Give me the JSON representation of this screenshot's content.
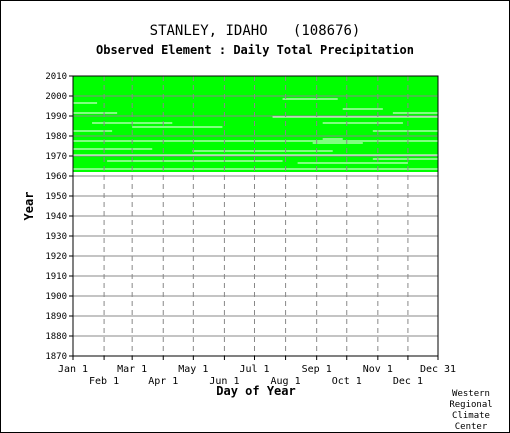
{
  "chart_data": {
    "type": "heatmap",
    "title": "STANLEY, IDAHO   (108676)",
    "subtitle": "Observed Element : Daily Total Precipitation",
    "xlabel": "Day of Year",
    "ylabel": "Year",
    "ylim": [
      1870,
      2010
    ],
    "xlim": [
      1,
      365
    ],
    "y_ticks": [
      1870,
      1880,
      1890,
      1900,
      1910,
      1920,
      1930,
      1940,
      1950,
      1960,
      1970,
      1980,
      1990,
      2000,
      2010
    ],
    "x_ticks_upper": [
      {
        "label": "Jan 1",
        "day": 1
      },
      {
        "label": "Mar 1",
        "day": 60
      },
      {
        "label": "May 1",
        "day": 121
      },
      {
        "label": "Jul 1",
        "day": 182
      },
      {
        "label": "Sep 1",
        "day": 244
      },
      {
        "label": "Nov 1",
        "day": 305
      },
      {
        "label": "Dec 31",
        "day": 365
      }
    ],
    "x_ticks_lower": [
      {
        "label": "Feb 1",
        "day": 32
      },
      {
        "label": "Apr 1",
        "day": 91
      },
      {
        "label": "Jun 1",
        "day": 152
      },
      {
        "label": "Aug 1",
        "day": 213
      },
      {
        "label": "Oct 1",
        "day": 274
      },
      {
        "label": "Dec 1",
        "day": 335
      }
    ],
    "data_color": "#00ff00",
    "grid": true,
    "record_start_year": 1962,
    "record_end_year": 2009,
    "missing_gaps": [
      {
        "year": 1963,
        "from_day": 1,
        "to_day": 365
      },
      {
        "year": 1966,
        "from_day": 225,
        "to_day": 335
      },
      {
        "year": 1967,
        "from_day": 35,
        "to_day": 210
      },
      {
        "year": 1968,
        "from_day": 300,
        "to_day": 365
      },
      {
        "year": 1970,
        "from_day": 1,
        "to_day": 365
      },
      {
        "year": 1972,
        "from_day": 120,
        "to_day": 260
      },
      {
        "year": 1973,
        "from_day": 1,
        "to_day": 80
      },
      {
        "year": 1976,
        "from_day": 240,
        "to_day": 290
      },
      {
        "year": 1977,
        "from_day": 1,
        "to_day": 365
      },
      {
        "year": 1978,
        "from_day": 250,
        "to_day": 270
      },
      {
        "year": 1982,
        "from_day": 1,
        "to_day": 40
      },
      {
        "year": 1982,
        "from_day": 300,
        "to_day": 365
      },
      {
        "year": 1984,
        "from_day": 60,
        "to_day": 150
      },
      {
        "year": 1986,
        "from_day": 20,
        "to_day": 100
      },
      {
        "year": 1986,
        "from_day": 250,
        "to_day": 330
      },
      {
        "year": 1989,
        "from_day": 200,
        "to_day": 365
      },
      {
        "year": 1991,
        "from_day": 1,
        "to_day": 45
      },
      {
        "year": 1991,
        "from_day": 320,
        "to_day": 365
      },
      {
        "year": 1993,
        "from_day": 270,
        "to_day": 310
      },
      {
        "year": 1996,
        "from_day": 1,
        "to_day": 25
      },
      {
        "year": 1998,
        "from_day": 210,
        "to_day": 265
      }
    ]
  },
  "credit": [
    "Western",
    "Regional",
    "Climate",
    "Center"
  ]
}
